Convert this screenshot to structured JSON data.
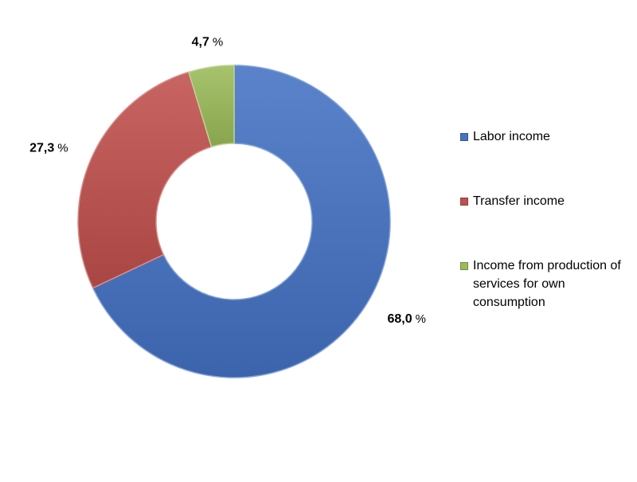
{
  "chart_data": {
    "type": "pie",
    "donut": true,
    "categories": [
      "Labor income",
      "Transfer income",
      "Income from production of services for own consumption"
    ],
    "values": [
      68.0,
      27.3,
      4.7
    ],
    "value_labels": [
      "68,0",
      "27,3",
      "4,7"
    ],
    "unit": "%",
    "colors": [
      "#4472C4",
      "#C0504D",
      "#9BBB59"
    ],
    "legend": "right",
    "title": "",
    "grid": false
  }
}
